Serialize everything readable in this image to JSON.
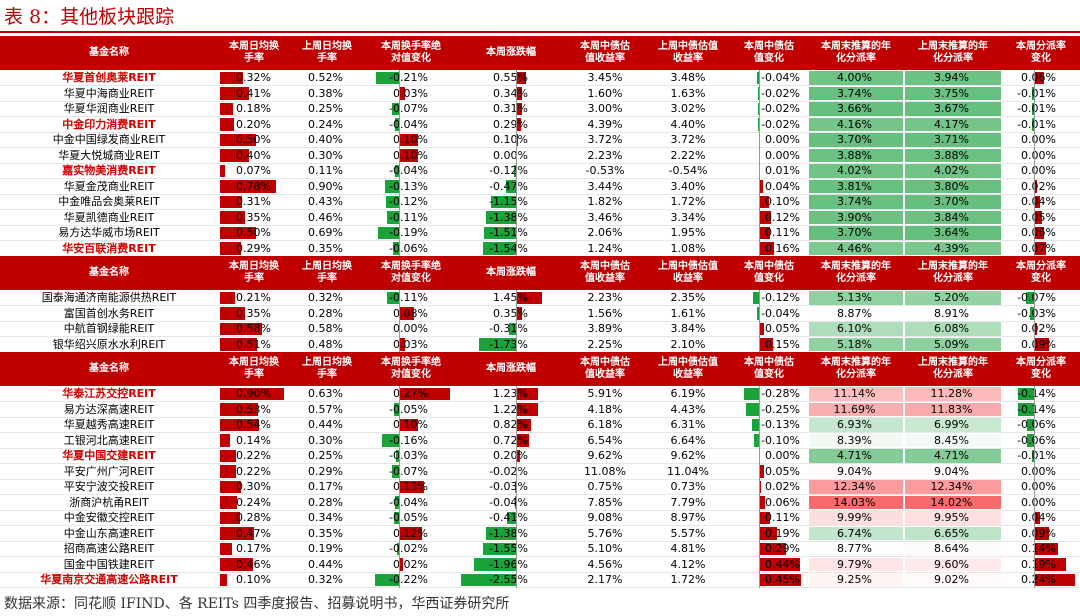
{
  "title": "表 8：其他板块跟踪",
  "source": "数据来源：同花顺 IFIND、各 REITs 四季度报告、招募说明书，华西证券研究所",
  "colors": {
    "header": "#c00000",
    "bar_red": "#c00000",
    "bar_green": "#19a33a",
    "name_highlight": "#d40000"
  },
  "headers": [
    "基金名称",
    "本周日均换\n手率",
    "上周日均换\n手率",
    "本周换手率绝\n对值变化",
    "本周涨跌幅",
    "本周中债估\n值收益率",
    "上周中债估值\n收益率",
    "本周中债估\n值变化",
    "本周末推算的年\n化分派率",
    "上周末推算的年\n化分派率",
    "本周分派率\n变化"
  ],
  "chart_data": {
    "type": "table",
    "columns": [
      "基金名称",
      "本周日均换手率",
      "上周日均换手率",
      "本周换手率绝对值变化",
      "本周涨跌幅",
      "本周中债估值收益率",
      "上周中债估值收益率",
      "本周中债估值变化",
      "本周末推算的年化分派率",
      "上周末推算的年化分派率",
      "本周分派率变化"
    ],
    "sections": [
      {
        "rows": [
          {
            "name": "华夏首创奥莱REIT",
            "hl": true,
            "v": [
              "0.32%",
              "0.52%",
              "-0.21%",
              "0.55%",
              "3.45%",
              "3.48%",
              "-0.04%",
              "4.00%",
              "3.94%",
              "0.06%"
            ]
          },
          {
            "name": "华夏中海商业REIT",
            "hl": false,
            "v": [
              "0.41%",
              "0.38%",
              "0.03%",
              "0.34%",
              "1.60%",
              "1.63%",
              "-0.02%",
              "3.74%",
              "3.75%",
              "-0.01%"
            ]
          },
          {
            "name": "华夏华润商业REIT",
            "hl": false,
            "v": [
              "0.18%",
              "0.25%",
              "-0.07%",
              "0.31%",
              "3.00%",
              "3.02%",
              "-0.02%",
              "3.66%",
              "3.67%",
              "-0.01%"
            ]
          },
          {
            "name": "中金印力消费REIT",
            "hl": true,
            "v": [
              "0.20%",
              "0.24%",
              "-0.04%",
              "0.29%",
              "4.39%",
              "4.40%",
              "-0.02%",
              "4.16%",
              "4.17%",
              "-0.01%"
            ]
          },
          {
            "name": "中金中国绿发商业REIT",
            "hl": false,
            "v": [
              "0.50%",
              "0.40%",
              "0.10%",
              "0.10%",
              "3.72%",
              "3.72%",
              "0.00%",
              "3.70%",
              "3.71%",
              "0.00%"
            ]
          },
          {
            "name": "华夏大悦城商业REIT",
            "hl": false,
            "v": [
              "0.40%",
              "0.30%",
              "0.10%",
              "0.00%",
              "2.23%",
              "2.22%",
              "0.00%",
              "3.88%",
              "3.88%",
              "0.00%"
            ]
          },
          {
            "name": "嘉实物美消费REIT",
            "hl": true,
            "v": [
              "0.07%",
              "0.11%",
              "-0.04%",
              "-0.12%",
              "-0.53%",
              "-0.54%",
              "0.01%",
              "4.02%",
              "4.02%",
              "0.00%"
            ]
          },
          {
            "name": "华夏金茂商业REIT",
            "hl": false,
            "v": [
              "0.78%",
              "0.90%",
              "-0.13%",
              "-0.47%",
              "3.44%",
              "3.40%",
              "0.04%",
              "3.81%",
              "3.80%",
              "0.02%"
            ]
          },
          {
            "name": "中金唯品会奥莱REIT",
            "hl": false,
            "v": [
              "0.31%",
              "0.43%",
              "-0.12%",
              "-1.15%",
              "1.82%",
              "1.72%",
              "0.10%",
              "3.74%",
              "3.70%",
              "0.04%"
            ]
          },
          {
            "name": "华夏凯德商业REIT",
            "hl": false,
            "v": [
              "0.35%",
              "0.46%",
              "-0.11%",
              "-1.38%",
              "3.46%",
              "3.34%",
              "0.12%",
              "3.90%",
              "3.84%",
              "0.05%"
            ]
          },
          {
            "name": "易方达华威市场REIT",
            "hl": false,
            "v": [
              "0.50%",
              "0.69%",
              "-0.19%",
              "-1.51%",
              "2.06%",
              "1.95%",
              "0.11%",
              "3.70%",
              "3.64%",
              "0.06%"
            ]
          },
          {
            "name": "华安百联消费REIT",
            "hl": true,
            "v": [
              "0.29%",
              "0.35%",
              "-0.06%",
              "-1.54%",
              "1.24%",
              "1.08%",
              "0.16%",
              "4.46%",
              "4.39%",
              "0.07%"
            ]
          }
        ]
      },
      {
        "rows": [
          {
            "name": "国泰海通济南能源供热REIT",
            "hl": false,
            "v": [
              "0.21%",
              "0.32%",
              "-0.11%",
              "1.45%",
              "2.23%",
              "2.35%",
              "-0.12%",
              "5.13%",
              "5.20%",
              "-0.07%"
            ]
          },
          {
            "name": "富国首创水务REIT",
            "hl": false,
            "v": [
              "0.35%",
              "0.28%",
              "0.08%",
              "0.35%",
              "1.56%",
              "1.61%",
              "-0.04%",
              "8.87%",
              "8.91%",
              "-0.03%"
            ]
          },
          {
            "name": "中航首钢绿能REIT",
            "hl": false,
            "v": [
              "0.58%",
              "0.58%",
              "0.00%",
              "-0.31%",
              "3.89%",
              "3.84%",
              "0.05%",
              "6.10%",
              "6.08%",
              "0.02%"
            ]
          },
          {
            "name": "银华绍兴原水水利REIT",
            "hl": false,
            "v": [
              "0.51%",
              "0.48%",
              "0.03%",
              "-1.73%",
              "2.25%",
              "2.10%",
              "0.15%",
              "5.18%",
              "5.09%",
              "0.09%"
            ]
          }
        ]
      },
      {
        "rows": [
          {
            "name": "华泰江苏交控REIT",
            "hl": true,
            "v": [
              "0.90%",
              "0.63%",
              "0.27%",
              "1.23%",
              "5.91%",
              "6.19%",
              "-0.28%",
              "11.14%",
              "11.28%",
              "-0.14%"
            ]
          },
          {
            "name": "易方达深高速REIT",
            "hl": false,
            "v": [
              "0.53%",
              "0.57%",
              "-0.05%",
              "1.22%",
              "4.18%",
              "4.43%",
              "-0.25%",
              "11.69%",
              "11.83%",
              "-0.14%"
            ]
          },
          {
            "name": "华夏越秀高速REIT",
            "hl": false,
            "v": [
              "0.54%",
              "0.44%",
              "0.10%",
              "0.82%",
              "6.18%",
              "6.31%",
              "-0.13%",
              "6.93%",
              "6.99%",
              "-0.06%"
            ]
          },
          {
            "name": "工银河北高速REIT",
            "hl": false,
            "v": [
              "0.14%",
              "0.30%",
              "-0.16%",
              "0.72%",
              "6.54%",
              "6.64%",
              "-0.10%",
              "8.39%",
              "8.45%",
              "-0.06%"
            ]
          },
          {
            "name": "华夏中国交建REIT",
            "hl": true,
            "v": [
              "0.22%",
              "0.25%",
              "-0.03%",
              "0.20%",
              "9.62%",
              "9.62%",
              "0.00%",
              "4.71%",
              "4.71%",
              "-0.01%"
            ]
          },
          {
            "name": "平安广州广河REIT",
            "hl": false,
            "v": [
              "0.22%",
              "0.29%",
              "-0.07%",
              "-0.02%",
              "11.08%",
              "11.04%",
              "0.05%",
              "9.04%",
              "9.04%",
              "0.00%"
            ]
          },
          {
            "name": "平安宁波交投REIT",
            "hl": false,
            "v": [
              "0.30%",
              "0.17%",
              "0.13%",
              "-0.03%",
              "0.75%",
              "0.73%",
              "0.02%",
              "12.34%",
              "12.34%",
              "0.00%"
            ]
          },
          {
            "name": "浙商沪杭甬REIT",
            "hl": false,
            "v": [
              "0.24%",
              "0.28%",
              "-0.04%",
              "-0.04%",
              "7.85%",
              "7.79%",
              "0.06%",
              "14.03%",
              "14.02%",
              "0.00%"
            ]
          },
          {
            "name": "中金安徽交控REIT",
            "hl": false,
            "v": [
              "0.28%",
              "0.34%",
              "-0.05%",
              "-0.41%",
              "9.08%",
              "8.97%",
              "0.11%",
              "9.99%",
              "9.95%",
              "0.04%"
            ]
          },
          {
            "name": "中金山东高速REIT",
            "hl": false,
            "v": [
              "0.47%",
              "0.35%",
              "0.12%",
              "-1.38%",
              "5.76%",
              "5.57%",
              "0.19%",
              "6.74%",
              "6.65%",
              "0.09%"
            ]
          },
          {
            "name": "招商高速公路REIT",
            "hl": false,
            "v": [
              "0.17%",
              "0.19%",
              "-0.02%",
              "-1.55%",
              "5.10%",
              "4.81%",
              "0.29%",
              "8.77%",
              "8.64%",
              "0.14%"
            ]
          },
          {
            "name": "国金中国铁建REIT",
            "hl": false,
            "v": [
              "0.46%",
              "0.44%",
              "0.02%",
              "-1.96%",
              "4.56%",
              "4.12%",
              "0.44%",
              "9.79%",
              "9.60%",
              "0.19%"
            ]
          },
          {
            "name": "华夏南京交通高速公路REIT",
            "hl": true,
            "v": [
              "0.10%",
              "0.32%",
              "-0.22%",
              "-2.55%",
              "2.17%",
              "1.72%",
              "0.45%",
              "9.25%",
              "9.02%",
              "0.24%"
            ]
          }
        ]
      }
    ]
  }
}
